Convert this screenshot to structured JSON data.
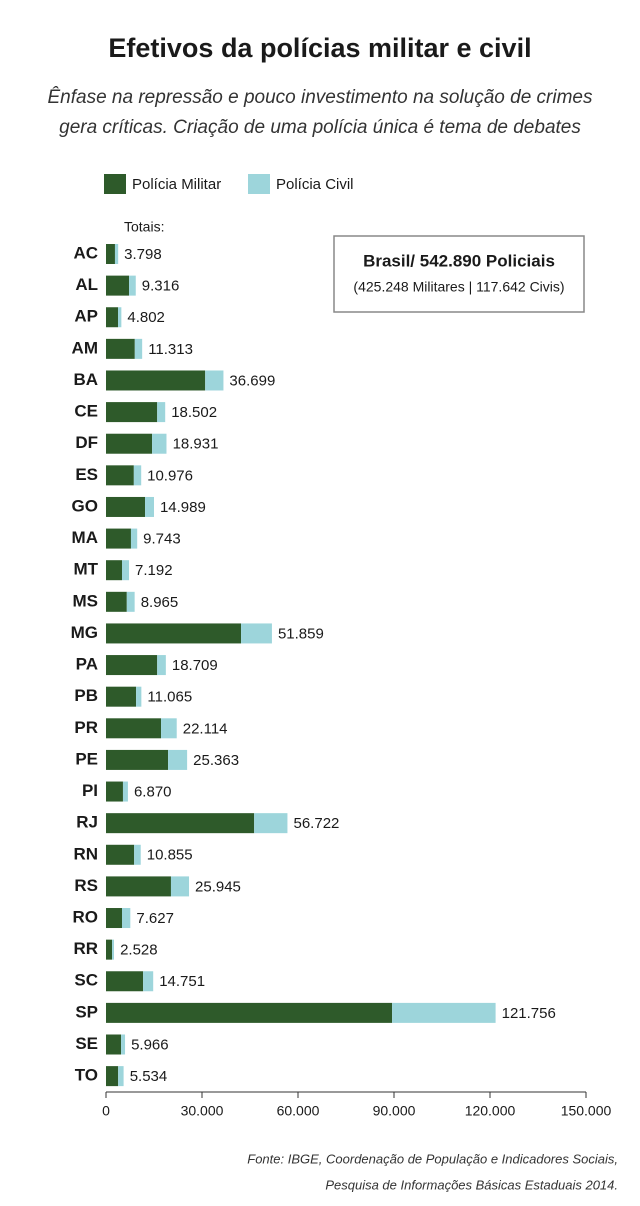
{
  "chart_data": {
    "type": "stacked-bar",
    "orientation": "horizontal",
    "title": "Efetivos da polícias militar e civil",
    "subtitle": [
      "Ênfase na repressão e pouco investimento na solução de crimes",
      "gera críticas. Criação de uma polícia única é tema de debates"
    ],
    "categories": [
      "AC",
      "AL",
      "AP",
      "AM",
      "BA",
      "CE",
      "DF",
      "ES",
      "GO",
      "MA",
      "MT",
      "MS",
      "MG",
      "PA",
      "PB",
      "PR",
      "PE",
      "PI",
      "RJ",
      "RN",
      "RS",
      "RO",
      "RR",
      "SC",
      "SP",
      "SE",
      "TO"
    ],
    "series": [
      {
        "name": "Polícia Militar",
        "color": "#2e5a2a",
        "values": [
          2800,
          7200,
          3750,
          9000,
          31000,
          16000,
          14400,
          8700,
          12200,
          7800,
          5000,
          6500,
          42200,
          16000,
          9400,
          17200,
          19400,
          5300,
          46300,
          8800,
          20300,
          5000,
          1900,
          11600,
          89400,
          4700,
          3800
        ]
      },
      {
        "name": "Polícia Civil",
        "color": "#9dd5db",
        "values": [
          1000,
          2100,
          1050,
          2300,
          5700,
          2500,
          4500,
          2300,
          2800,
          1950,
          2200,
          2450,
          9650,
          2700,
          1650,
          4900,
          5950,
          1550,
          10400,
          2050,
          5650,
          2600,
          600,
          3150,
          32350,
          1250,
          1700
        ]
      }
    ],
    "totals_label": "Totais:",
    "totals": {
      "values": [
        3798,
        9316,
        4802,
        11313,
        36699,
        18502,
        18931,
        10976,
        14989,
        9743,
        7192,
        8965,
        51859,
        18709,
        11065,
        22114,
        25363,
        6870,
        56722,
        10855,
        25945,
        7627,
        2528,
        14751,
        121756,
        5966,
        5534
      ],
      "value_labels": [
        "3.798",
        "9.316",
        "4.802",
        "11.313",
        "36.699",
        "18.502",
        "18.931",
        "10.976",
        "14.989",
        "9.743",
        "7.192",
        "8.965",
        "51.859",
        "18.709",
        "11.065",
        "22.114",
        "25.363",
        "6.870",
        "56.722",
        "10.855",
        "25.945",
        "7.627",
        "2.528",
        "14.751",
        "121.756",
        "5.966",
        "5.534"
      ]
    },
    "xlim": [
      0,
      150000
    ],
    "xticks": [
      0,
      {
        "value": 30000,
        "label": "30.000"
      },
      {
        "value": 60000,
        "label": "60.000"
      },
      {
        "value": 90000,
        "label": "90.000"
      },
      {
        "value": 120000,
        "label": "120.000"
      },
      {
        "value": 150000,
        "label": "150.000"
      }
    ],
    "annotation": {
      "title": "Brasil/ 542.890 Policiais",
      "detail": "(425.248 Militares | 117.642 Civis)"
    },
    "source": [
      "Fonte: IBGE, Coordenação de População e Indicadores Sociais,",
      "Pesquisa de Informações Básicas Estaduais 2014."
    ]
  }
}
